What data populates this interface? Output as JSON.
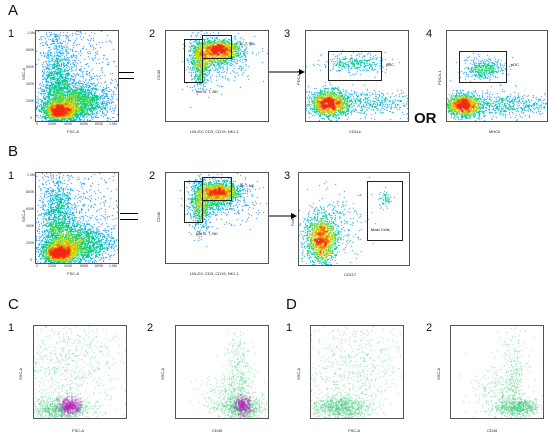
{
  "rows": {
    "A": {
      "label": "A"
    },
    "B": {
      "label": "B"
    },
    "C": {
      "label": "C"
    },
    "D": {
      "label": "D"
    }
  },
  "or_text": "OR",
  "panels": {
    "A1": {
      "num": "1",
      "ylabel": "SSC-A",
      "xlabel": "FSC-A",
      "yticks": [
        "1.0M",
        "800K",
        "600K",
        "400K",
        "200K",
        "0"
      ],
      "xticks": [
        "0",
        "200K",
        "400K",
        "600K",
        "800K",
        "1.0M"
      ]
    },
    "A2": {
      "num": "2",
      "ylabel": "CD45",
      "xlabel": "LIN-EX: CD3, CD19, NK1.1",
      "gates": {
        "upper": "B, T, NK",
        "lower": "Not B, T, NK"
      }
    },
    "A3": {
      "num": "3",
      "ylabel": "PDCA-1",
      "xlabel": "CD11c",
      "gate": "pDC"
    },
    "A4": {
      "num": "4",
      "ylabel": "PDCA-1",
      "xlabel": "MHCII",
      "gate": "pDC"
    },
    "B1": {
      "num": "1",
      "ylabel": "SSC-A",
      "xlabel": "FSC-A",
      "yticks": [
        "1.0M",
        "800K",
        "600K",
        "400K",
        "200K",
        "0"
      ],
      "xticks": [
        "0",
        "200K",
        "400K",
        "600K",
        "800K",
        "1.0M"
      ]
    },
    "B2": {
      "num": "2",
      "ylabel": "CD45",
      "xlabel": "LIN-EX: CD3, CD19, NK1.1",
      "gates": {
        "upper": "B, T, NK",
        "lower": "Not B, T, NK"
      }
    },
    "B3": {
      "num": "3",
      "ylabel": "FcεRIα",
      "xlabel": "CD117",
      "gate": "Mast Cells"
    },
    "C1": {
      "num": "1",
      "ylabel": "SSC-A",
      "xlabel": "FSC-A"
    },
    "C2": {
      "num": "2",
      "ylabel": "SSC-A",
      "xlabel": "CD45"
    },
    "D1": {
      "num": "1",
      "ylabel": "SSC-A",
      "xlabel": "FSC-A"
    },
    "D2": {
      "num": "2",
      "ylabel": "SSC-A",
      "xlabel": "CD45"
    }
  }
}
